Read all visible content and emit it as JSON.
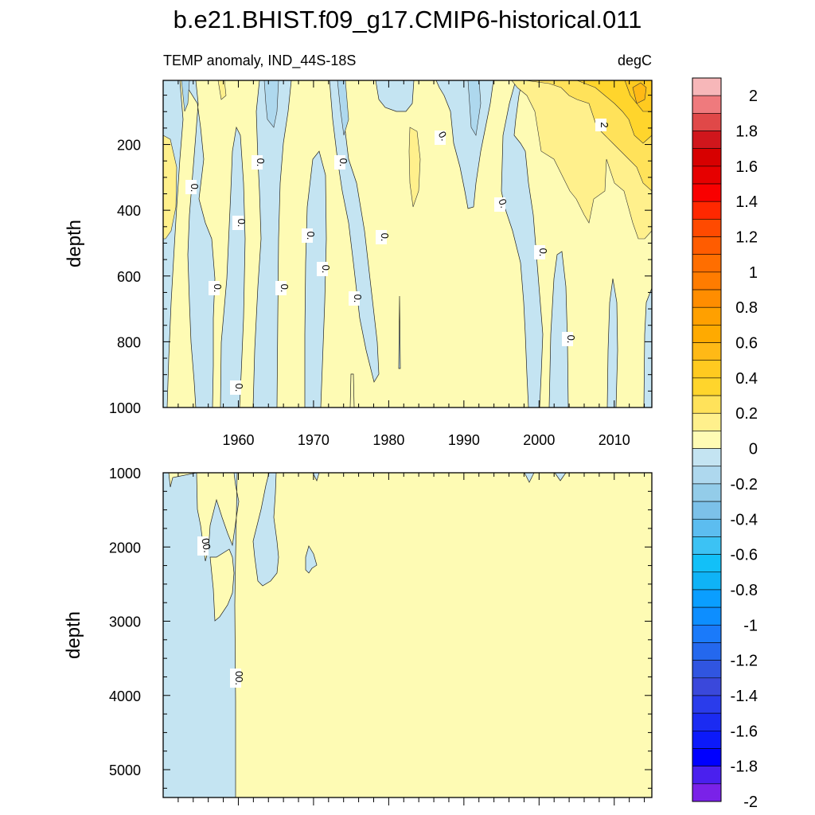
{
  "chart_data": [
    {
      "type": "heatmap",
      "panel": "upper",
      "title": "b.e21.BHIST.f09_g17.CMIP6-historical.011",
      "subtitle_left": "TEMP anomaly, IND_44S-18S",
      "subtitle_right": "degC",
      "xlabel": "",
      "ylabel": "depth",
      "xlim": [
        1950,
        2015
      ],
      "ylim": [
        5,
        1000
      ],
      "y_inverted": true,
      "x_ticks": [
        1960,
        1970,
        1980,
        1990,
        2000,
        2010
      ],
      "y_ticks": [
        200,
        400,
        600,
        800,
        1000
      ],
      "contour_labels": [
        {
          "text": "0.",
          "x": 1953.7,
          "y": 322
        },
        {
          "text": "0.",
          "x": 1963.3,
          "y": 245
        },
        {
          "text": "0.",
          "x": 1960.6,
          "y": 432
        },
        {
          "text": "0.",
          "x": 1957.5,
          "y": 635
        },
        {
          "text": "0.",
          "x": 1966.0,
          "y": 635
        },
        {
          "text": "0.",
          "x": 1960.0,
          "y": 937
        },
        {
          "text": "0.",
          "x": 1970.0,
          "y": 475
        },
        {
          "text": "0.",
          "x": 1971.4,
          "y": 578
        },
        {
          "text": "0.",
          "x": 1973.9,
          "y": 245
        },
        {
          "text": "0.",
          "x": 1979.2,
          "y": 480
        },
        {
          "text": "0.",
          "x": 1975.4,
          "y": 665
        },
        {
          "text": "0.",
          "x": 1986.4,
          "y": 165
        },
        {
          "text": "0.",
          "x": 1995.3,
          "y": 380
        },
        {
          "text": "0.",
          "x": 1999.9,
          "y": 525
        },
        {
          "text": "0.",
          "x": 2003.5,
          "y": 785
        },
        {
          "text": "2",
          "x": 2008.2,
          "y": 140
        }
      ]
    },
    {
      "type": "heatmap",
      "panel": "lower",
      "xlabel": "",
      "ylabel": "depth",
      "xlim": [
        1950,
        2015
      ],
      "ylim": [
        1000,
        5375
      ],
      "y_inverted": true,
      "y_ticks": [
        1000,
        2000,
        3000,
        4000,
        5000
      ],
      "contour_labels": [
        {
          "text": "00.",
          "x": 1955.5,
          "y": 1980
        },
        {
          "text": "00.",
          "x": 1960.2,
          "y": 3760
        }
      ]
    }
  ],
  "colorbar": {
    "units": "degC",
    "labels": [
      "2",
      "1.8",
      "1.6",
      "1.4",
      "1.2",
      "1",
      "0.8",
      "0.6",
      "0.4",
      "0.2",
      "0",
      "-0.2",
      "-0.4",
      "-0.6",
      "-0.8",
      "-1",
      "-1.2",
      "-1.4",
      "-1.6",
      "-1.8",
      "-2"
    ],
    "colors": [
      "#f7b7b9",
      "#ef7a7d",
      "#e04848",
      "#d0161c",
      "#d70000",
      "#e60000",
      "#f90000",
      "#ff2800",
      "#ff4a00",
      "#ff5c00",
      "#ff6e00",
      "#ff7c00",
      "#ff8d00",
      "#ffa000",
      "#ffaa00",
      "#ffb916",
      "#ffca20",
      "#ffd52c",
      "#ffe25a",
      "#fff08c",
      "#fefbb4",
      "#c4e4f2",
      "#aed8ee",
      "#93cce9",
      "#7cc1e9",
      "#5cbdf0",
      "#3cc2f4",
      "#12c0f8",
      "#0fb3f6",
      "#0a9eff",
      "#0d8eff",
      "#1a7afa",
      "#2468ee",
      "#3055e0",
      "#3a48db",
      "#2a3ceb",
      "#1b2bf2",
      "#0c1afa",
      "#0000ff",
      "#4a20ee",
      "#7a22e8"
    ]
  }
}
